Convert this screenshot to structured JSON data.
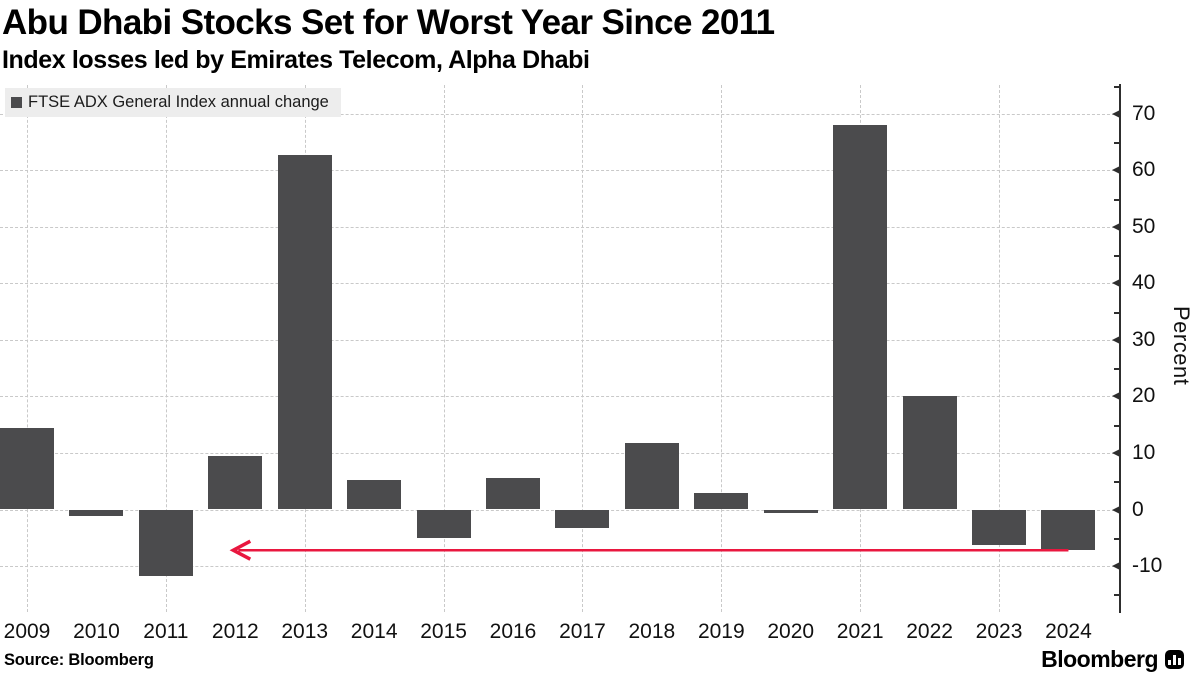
{
  "header": {
    "title": "Abu Dhabi Stocks Set for Worst Year Since 2011",
    "subtitle": "Index losses led by Emirates Telecom, Alpha Dhabi"
  },
  "legend": {
    "label": "FTSE ADX General Index annual change",
    "swatch_color": "#4b4b4d"
  },
  "chart_data": {
    "type": "bar",
    "title": "Abu Dhabi Stocks Set for Worst Year Since 2011",
    "subtitle": "Index losses led by Emirates Telecom, Alpha Dhabi",
    "legend_label": "FTSE ADX General Index annual change",
    "categories": [
      "2009",
      "2010",
      "2011",
      "2012",
      "2013",
      "2014",
      "2015",
      "2016",
      "2017",
      "2018",
      "2019",
      "2020",
      "2021",
      "2022",
      "2023",
      "2024"
    ],
    "values": [
      14.5,
      -1.2,
      -11.7,
      9.4,
      62.8,
      5.3,
      -5.1,
      5.5,
      -3.3,
      11.8,
      3.0,
      -0.7,
      68.0,
      20.0,
      -6.2,
      -7.2
    ],
    "xlabel": "",
    "ylabel": "Percent",
    "ylim": [
      -18,
      75
    ],
    "yticks": [
      70,
      60,
      50,
      40,
      30,
      20,
      10,
      0,
      -10
    ],
    "grid": "dashed horizontal every 10, dashed vertical at odd years, legend top-left, y-axis on right",
    "bar_color": "#4b4b4d",
    "annotations": [
      {
        "type": "arrow",
        "direction": "left",
        "y_value": -7.2,
        "from_year": "2024",
        "to_year": "2012",
        "color": "#e9173f"
      }
    ]
  },
  "footer": {
    "source": "Source: Bloomberg",
    "logo_text": "Bloomberg",
    "logo_icon": "bloomberg-bars-icon"
  }
}
